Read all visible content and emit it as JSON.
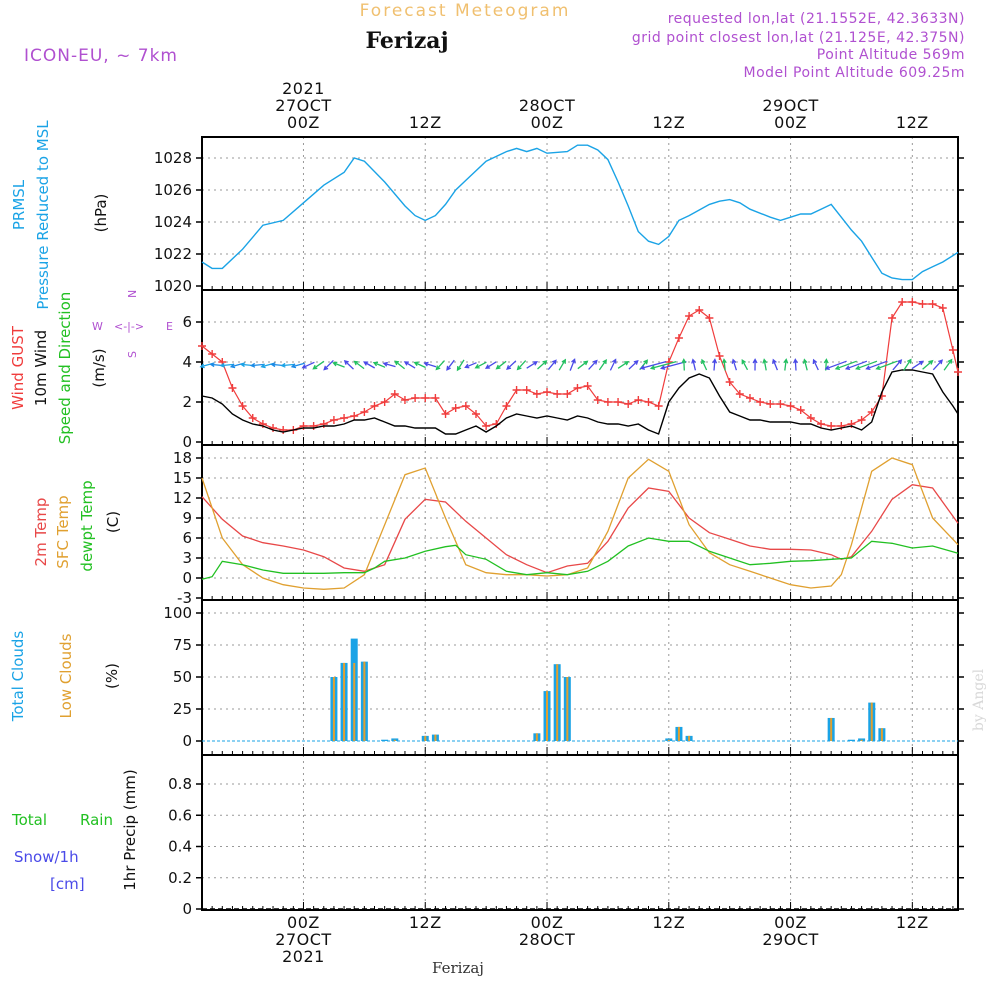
{
  "header": {
    "super_title": "Forecast Meteogram",
    "location": "Ferizaj",
    "model": "ICON-EU, ~ 7km",
    "requested": "requested lon,lat (21.1552E, 42.3633N)",
    "grid": "grid point closest lon,lat (21.125E, 42.375N)",
    "point_alt": "Point Altitude 569m",
    "model_alt": "Model Point Altitude 609.25m",
    "footer_location": "Ferizaj",
    "watermark": "by Angel"
  },
  "time_axis": {
    "top_labels": [
      {
        "h": 0,
        "lines": [
          "2021",
          "27OCT",
          "00Z"
        ]
      },
      {
        "h": 12,
        "lines": [
          "12Z"
        ]
      },
      {
        "h": 24,
        "lines": [
          "28OCT",
          "00Z"
        ]
      },
      {
        "h": 36,
        "lines": [
          "12Z"
        ]
      },
      {
        "h": 48,
        "lines": [
          "29OCT",
          "00Z"
        ]
      },
      {
        "h": 60,
        "lines": [
          "12Z"
        ]
      }
    ],
    "bottom_labels": [
      {
        "h": 0,
        "lines": [
          "00Z",
          "27OCT",
          "2021"
        ]
      },
      {
        "h": 12,
        "lines": [
          "12Z"
        ]
      },
      {
        "h": 24,
        "lines": [
          "00Z",
          "28OCT"
        ]
      },
      {
        "h": 36,
        "lines": [
          "12Z"
        ]
      },
      {
        "h": 48,
        "lines": [
          "00Z",
          "29OCT"
        ]
      },
      {
        "h": 60,
        "lines": [
          "12Z"
        ]
      }
    ]
  },
  "colors": {
    "pressure": "#1aa3e6",
    "gust": "#f03c3c",
    "wind": "#000000",
    "temp2m": "#e84848",
    "sfc": "#e0a030",
    "dewpt": "#22c022",
    "total_clouds": "#1aa3e6",
    "low_clouds": "#e0a030",
    "rain": "#22c022",
    "snow": "#4a4ae8",
    "title": "#f0c070",
    "info": "#b050d0",
    "dir_legend": "#b050d0"
  },
  "panels": {
    "pressure": {
      "labels": [
        "PRMSL",
        "Pressure Reduced to MSL",
        "(hPa)"
      ]
    },
    "wind": {
      "labels": [
        "Wind GUST",
        "10m Wind",
        "Speed and Direction",
        "(m/s)"
      ],
      "direction_legend": {
        "n": "N",
        "s": "S",
        "w": "W",
        "e": "E",
        "arrow": "<-|->"
      }
    },
    "temp": {
      "labels": [
        "2m Temp",
        "SFC Temp",
        "dewpt Temp",
        "(C)"
      ]
    },
    "clouds": {
      "labels": [
        "Total Clouds",
        "Low Clouds",
        "(%)"
      ]
    },
    "precip": {
      "labels": [
        "Total",
        "Rain",
        "Snow/1h",
        "[cm]",
        "1hr Precip (mm)"
      ]
    }
  },
  "chart_data": [
    {
      "type": "line",
      "panel": "pressure",
      "ylabel": "(hPa)",
      "ylim": [
        1020,
        1029
      ],
      "yticks": [
        1020,
        1022,
        1024,
        1026,
        1028
      ],
      "x_unit": "hours from 27OCT 00Z",
      "series": [
        {
          "name": "PRMSL",
          "x": [
            -10,
            -9,
            -8,
            -6,
            -4,
            -2,
            0,
            2,
            4,
            5,
            6,
            8,
            10,
            11,
            12,
            13,
            14,
            15,
            16,
            18,
            20,
            21,
            22,
            23,
            24,
            26,
            27,
            28,
            29,
            30,
            31,
            32,
            33,
            34,
            35,
            36,
            37,
            38,
            40,
            41,
            42,
            43,
            44,
            46,
            47,
            48,
            49,
            50,
            51,
            52,
            53,
            54,
            55,
            56,
            57,
            58,
            59,
            60,
            61,
            62,
            63,
            64.5
          ],
          "values": [
            1021.5,
            1021.1,
            1021.1,
            1022.3,
            1023.8,
            1024.1,
            1025.2,
            1026.3,
            1027.1,
            1028.0,
            1027.8,
            1026.5,
            1025.0,
            1024.4,
            1024.1,
            1024.4,
            1025.1,
            1026.0,
            1026.6,
            1027.8,
            1028.4,
            1028.6,
            1028.4,
            1028.6,
            1028.3,
            1028.4,
            1028.8,
            1028.8,
            1028.5,
            1027.9,
            1026.5,
            1025.0,
            1023.4,
            1022.8,
            1022.6,
            1023.1,
            1024.1,
            1024.4,
            1025.1,
            1025.3,
            1025.4,
            1025.2,
            1024.8,
            1024.3,
            1024.1,
            1024.3,
            1024.5,
            1024.5,
            1024.8,
            1025.1,
            1024.3,
            1023.5,
            1022.8,
            1021.8,
            1020.8,
            1020.5,
            1020.4,
            1020.4,
            1020.9,
            1021.2,
            1021.5,
            1022.1
          ]
        }
      ]
    },
    {
      "type": "line",
      "panel": "wind",
      "ylabel": "(m/s)",
      "ylim": [
        0,
        7.5
      ],
      "yticks": [
        0,
        2,
        4,
        6
      ],
      "series": [
        {
          "name": "Wind GUST",
          "marker": "+",
          "x": [
            -10,
            -9,
            -8,
            -7,
            -6,
            -5,
            -4,
            -3,
            -2,
            -1,
            0,
            1,
            2,
            3,
            4,
            5,
            6,
            7,
            8,
            9,
            10,
            11,
            12,
            13,
            14,
            15,
            16,
            17,
            18,
            19,
            20,
            21,
            22,
            23,
            24,
            25,
            26,
            27,
            28,
            29,
            30,
            31,
            32,
            33,
            34,
            35,
            36,
            37,
            38,
            39,
            40,
            41,
            42,
            43,
            44,
            45,
            46,
            47,
            48,
            49,
            50,
            51,
            52,
            53,
            54,
            55,
            56,
            57,
            58,
            59,
            60,
            61,
            62,
            63,
            64,
            64.5
          ],
          "values": [
            4.8,
            4.4,
            4.0,
            2.7,
            1.8,
            1.2,
            0.9,
            0.7,
            0.6,
            0.6,
            0.8,
            0.8,
            0.9,
            1.1,
            1.2,
            1.3,
            1.5,
            1.8,
            2.0,
            2.4,
            2.1,
            2.2,
            2.2,
            2.2,
            1.4,
            1.7,
            1.8,
            1.4,
            0.8,
            0.9,
            1.8,
            2.6,
            2.6,
            2.4,
            2.5,
            2.4,
            2.4,
            2.7,
            2.8,
            2.1,
            2.0,
            2.0,
            1.9,
            2.1,
            2.0,
            1.8,
            4.0,
            5.2,
            6.3,
            6.6,
            6.2,
            4.3,
            3.0,
            2.4,
            2.2,
            2.0,
            1.9,
            1.9,
            1.8,
            1.6,
            1.2,
            0.9,
            0.8,
            0.8,
            0.9,
            1.1,
            1.5,
            2.3,
            6.2,
            7.0,
            7.0,
            6.9,
            6.9,
            6.7,
            4.6,
            3.5
          ]
        },
        {
          "name": "10m Wind",
          "x": [
            -10,
            -9,
            -8,
            -7,
            -6,
            -5,
            -4,
            -3,
            -2,
            -1,
            0,
            1,
            2,
            3,
            4,
            5,
            6,
            7,
            8,
            9,
            10,
            11,
            12,
            13,
            14,
            15,
            16,
            17,
            18,
            19,
            20,
            21,
            22,
            23,
            24,
            25,
            26,
            27,
            28,
            29,
            30,
            31,
            32,
            33,
            34,
            35,
            36,
            37,
            38,
            39,
            40,
            41,
            42,
            43,
            44,
            45,
            46,
            47,
            48,
            49,
            50,
            51,
            52,
            53,
            54,
            55,
            56,
            57,
            58,
            59,
            60,
            61,
            62,
            63,
            64,
            64.5
          ],
          "values": [
            2.3,
            2.2,
            1.9,
            1.4,
            1.1,
            0.9,
            0.8,
            0.6,
            0.5,
            0.6,
            0.7,
            0.7,
            0.8,
            0.8,
            0.9,
            1.1,
            1.1,
            1.2,
            1.0,
            0.8,
            0.8,
            0.7,
            0.7,
            0.7,
            0.4,
            0.4,
            0.6,
            0.8,
            0.5,
            0.8,
            1.2,
            1.4,
            1.3,
            1.2,
            1.3,
            1.2,
            1.1,
            1.3,
            1.2,
            1.0,
            0.9,
            0.9,
            0.8,
            0.9,
            0.6,
            0.4,
            2.0,
            2.7,
            3.2,
            3.4,
            3.2,
            2.3,
            1.5,
            1.3,
            1.1,
            1.1,
            1.0,
            1.0,
            1.0,
            0.9,
            0.9,
            0.7,
            0.6,
            0.7,
            0.8,
            0.6,
            1.0,
            2.5,
            3.5,
            3.6,
            3.6,
            3.5,
            3.4,
            2.5,
            1.8,
            1.4
          ]
        }
      ]
    },
    {
      "type": "line",
      "panel": "temp",
      "ylabel": "(C)",
      "ylim": [
        -3,
        19
      ],
      "yticks": [
        -3,
        0,
        3,
        6,
        9,
        12,
        15,
        18
      ],
      "series": [
        {
          "name": "2m Temp",
          "x": [
            -10,
            -8,
            -6,
            -4,
            -2,
            0,
            2,
            4,
            6,
            8,
            10,
            12,
            14,
            16,
            18,
            20,
            22,
            24,
            26,
            28,
            30,
            32,
            34,
            36,
            38,
            40,
            42,
            44,
            46,
            48,
            50,
            52,
            53,
            54,
            56,
            58,
            60,
            62,
            64.5
          ],
          "values": [
            12.2,
            8.8,
            6.3,
            5.3,
            4.8,
            4.2,
            3.2,
            1.5,
            1.0,
            2.0,
            8.8,
            11.8,
            11.4,
            8.5,
            6.0,
            3.5,
            2.0,
            0.8,
            1.8,
            2.2,
            5.5,
            10.5,
            13.5,
            13.0,
            9.0,
            6.8,
            5.8,
            4.8,
            4.3,
            4.3,
            4.2,
            3.5,
            2.8,
            3.2,
            7.0,
            11.8,
            14.0,
            13.5,
            8.2
          ]
        },
        {
          "name": "SFC Temp",
          "x": [
            -10,
            -8,
            -6,
            -4,
            -2,
            0,
            2,
            4,
            6,
            8,
            10,
            12,
            14,
            16,
            18,
            20,
            22,
            24,
            26,
            28,
            30,
            32,
            34,
            36,
            38,
            40,
            42,
            44,
            46,
            48,
            50,
            52,
            53,
            54,
            56,
            58,
            60,
            62,
            64.5
          ],
          "values": [
            15.0,
            6.0,
            2.0,
            0.0,
            -1.0,
            -1.5,
            -1.7,
            -1.5,
            0.5,
            8.0,
            15.5,
            16.5,
            9.0,
            2.0,
            0.8,
            0.5,
            0.5,
            0.3,
            0.5,
            1.5,
            7.0,
            15.0,
            17.8,
            16.0,
            8.0,
            3.8,
            2.0,
            1.0,
            0.0,
            -1.0,
            -1.5,
            -1.2,
            0.5,
            5.0,
            16.0,
            18.0,
            17.0,
            9.0,
            5.0
          ]
        },
        {
          "name": "dewpt Temp",
          "x": [
            -10,
            -9,
            -8,
            -6,
            -4,
            -2,
            0,
            2,
            4,
            6,
            7,
            8,
            10,
            12,
            14,
            15,
            16,
            18,
            20,
            22,
            24,
            26,
            28,
            30,
            32,
            34,
            36,
            38,
            40,
            42,
            44,
            46,
            48,
            50,
            52,
            54,
            56,
            58,
            60,
            62,
            64.5
          ],
          "values": [
            -0.2,
            0.2,
            2.5,
            2.0,
            1.2,
            0.7,
            0.7,
            0.7,
            0.8,
            0.8,
            1.5,
            2.5,
            3.0,
            4.0,
            4.7,
            4.9,
            3.5,
            2.8,
            1.0,
            0.5,
            0.8,
            0.5,
            1.0,
            2.5,
            4.8,
            6.0,
            5.5,
            5.5,
            4.0,
            3.0,
            2.0,
            2.2,
            2.5,
            2.6,
            2.8,
            3.0,
            5.5,
            5.2,
            4.5,
            4.8,
            3.7
          ]
        }
      ]
    },
    {
      "type": "bar",
      "panel": "clouds",
      "ylabel": "(%)",
      "ylim": [
        0,
        105
      ],
      "yticks": [
        0,
        25,
        50,
        75,
        100
      ],
      "series": [
        {
          "name": "Total Clouds",
          "x": [
            3,
            4,
            5,
            6,
            8,
            9,
            12,
            13,
            23,
            24,
            25,
            26,
            36,
            37,
            38,
            52,
            54,
            55,
            56,
            57
          ],
          "values": [
            50,
            61,
            80,
            62,
            1,
            2,
            4,
            5,
            6,
            39,
            60,
            50,
            2,
            11,
            4,
            18,
            1,
            2,
            30,
            10
          ]
        },
        {
          "name": "Low Clouds",
          "x": [
            3,
            4,
            5,
            6,
            8,
            9,
            12,
            13,
            23,
            24,
            25,
            26,
            36,
            37,
            38,
            52,
            54,
            55,
            56,
            57
          ],
          "values": [
            50,
            61,
            61,
            62,
            0,
            1,
            4,
            5,
            6,
            39,
            60,
            50,
            1,
            11,
            4,
            18,
            0,
            1,
            30,
            10
          ]
        }
      ]
    },
    {
      "type": "line",
      "panel": "precip",
      "ylabel": "1hr Precip (mm)",
      "ylim": [
        0,
        1.0
      ],
      "yticks": [
        0,
        0.2,
        0.4,
        0.6,
        0.8
      ],
      "series": [
        {
          "name": "Total Rain",
          "x": [
            -10,
            64.5
          ],
          "values": [
            0,
            0
          ]
        }
      ]
    }
  ]
}
